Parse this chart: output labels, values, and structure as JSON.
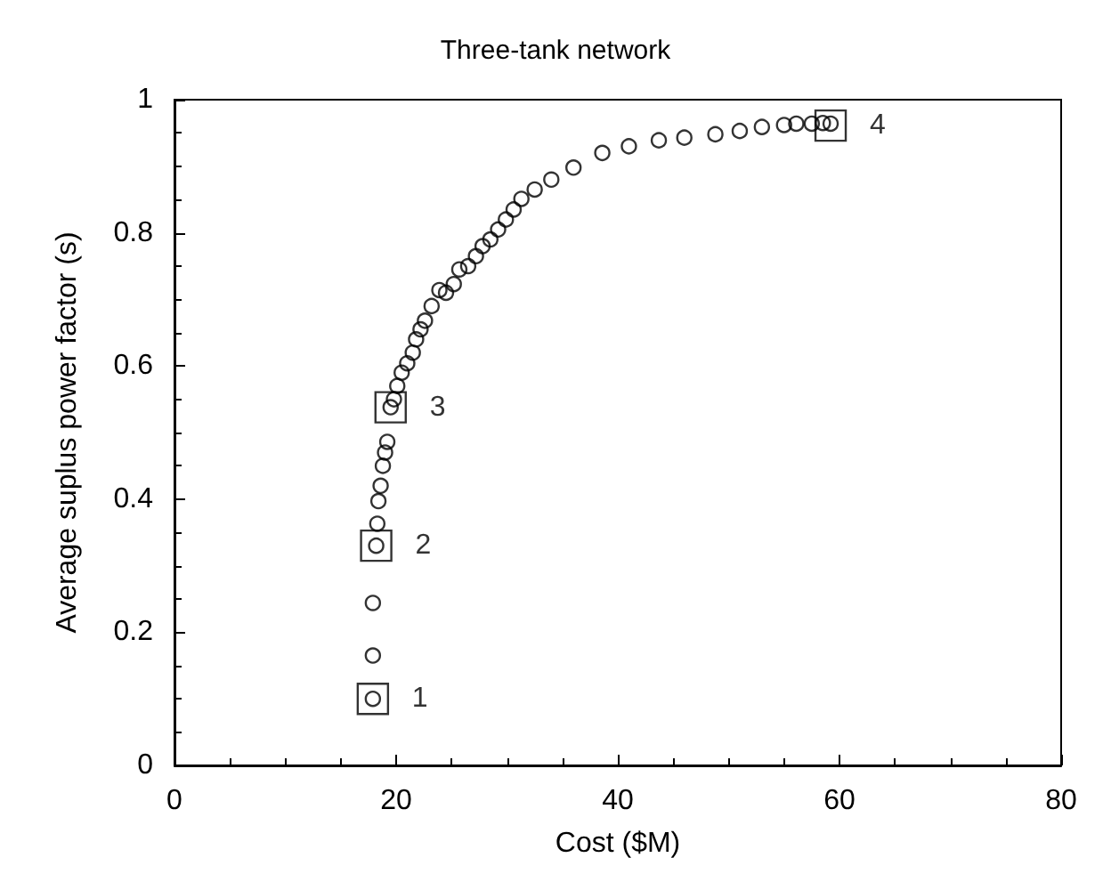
{
  "chart_data": {
    "type": "scatter",
    "title": "Three-tank network",
    "xlabel": "Cost ($M)",
    "ylabel": "Average suplus power factor (s)",
    "xlim": [
      0,
      80
    ],
    "xticks": [
      0,
      20,
      40,
      60,
      80
    ],
    "ylim": [
      0,
      1
    ],
    "yticks": [
      0,
      0.2,
      0.4,
      0.6,
      0.8,
      1
    ],
    "grid": false,
    "series": [
      {
        "color": "#000000",
        "marker": "circle",
        "x": [
          17.9,
          17.9,
          17.9,
          18.2,
          18.3,
          18.4,
          18.6,
          18.8,
          19.0,
          19.2,
          19.5,
          19.8,
          20.1,
          20.5,
          21.0,
          21.5,
          21.8,
          22.2,
          22.6,
          23.2,
          23.9,
          24.5,
          25.2,
          25.7,
          26.5,
          27.2,
          27.8,
          28.5,
          29.2,
          29.9,
          30.6,
          31.3,
          32.5,
          34.0,
          36.0,
          38.6,
          41.0,
          43.7,
          46.0,
          48.8,
          51.0,
          53.0,
          55.0,
          56.1,
          57.5,
          58.5,
          59.2
        ],
        "values": [
          0.1,
          0.165,
          0.244,
          0.33,
          0.363,
          0.397,
          0.42,
          0.45,
          0.47,
          0.486,
          0.538,
          0.55,
          0.57,
          0.59,
          0.604,
          0.62,
          0.64,
          0.655,
          0.668,
          0.69,
          0.714,
          0.71,
          0.723,
          0.745,
          0.75,
          0.765,
          0.78,
          0.79,
          0.805,
          0.82,
          0.835,
          0.851,
          0.865,
          0.88,
          0.898,
          0.92,
          0.93,
          0.939,
          0.943,
          0.948,
          0.953,
          0.959,
          0.962,
          0.964,
          0.964,
          0.965,
          0.964
        ]
      },
      {
        "color": "#000000",
        "marker": "square",
        "x": [
          17.9,
          18.2,
          19.5,
          59.2
        ],
        "values": [
          0.1,
          0.33,
          0.538,
          0.961
        ]
      }
    ],
    "annotations": [
      {
        "text": "1",
        "x": 17.9,
        "y": 0.1
      },
      {
        "text": "2",
        "x": 18.2,
        "y": 0.33
      },
      {
        "text": "3",
        "x": 19.5,
        "y": 0.538
      },
      {
        "text": "4",
        "x": 59.2,
        "y": 0.961
      }
    ]
  }
}
